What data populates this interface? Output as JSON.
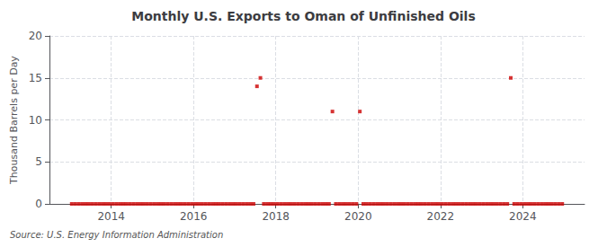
{
  "chart_data": {
    "type": "scatter",
    "title": "Monthly U.S. Exports to Oman of Unfinished Oils",
    "ylabel": "Thousand Barrels per Day",
    "source": "Source: U.S. Energy Information Administration",
    "color": "#cc0000",
    "marker": "square",
    "grid": true,
    "xlim": [
      2012.5,
      2025.5
    ],
    "xticks": [
      2014,
      2016,
      2018,
      2020,
      2022,
      2024
    ],
    "ylim": [
      0,
      20
    ],
    "yticks": [
      0,
      5,
      10,
      15,
      20
    ],
    "x": [
      2013.0416666666667,
      2013.125,
      2013.2083333333333,
      2013.2916666666667,
      2013.375,
      2013.4583333333333,
      2013.5416666666667,
      2013.625,
      2013.7083333333333,
      2013.7916666666667,
      2013.875,
      2013.9583333333333,
      2014.0416666666667,
      2014.125,
      2014.2083333333333,
      2014.2916666666667,
      2014.375,
      2014.4583333333333,
      2014.5416666666667,
      2014.625,
      2014.7083333333333,
      2014.7916666666667,
      2014.875,
      2014.9583333333333,
      2015.0416666666667,
      2015.125,
      2015.2083333333333,
      2015.2916666666667,
      2015.375,
      2015.4583333333333,
      2015.5416666666667,
      2015.625,
      2015.7083333333333,
      2015.7916666666667,
      2015.875,
      2015.9583333333333,
      2016.0416666666667,
      2016.125,
      2016.2083333333333,
      2016.2916666666667,
      2016.375,
      2016.4583333333333,
      2016.5416666666667,
      2016.625,
      2016.7083333333333,
      2016.7916666666667,
      2016.875,
      2016.9583333333333,
      2017.0416666666667,
      2017.125,
      2017.2083333333333,
      2017.2916666666667,
      2017.375,
      2017.4583333333333,
      2017.5416666666667,
      2017.625,
      2017.7083333333333,
      2017.7916666666667,
      2017.875,
      2017.9583333333333,
      2018.0416666666667,
      2018.125,
      2018.2083333333333,
      2018.2916666666667,
      2018.375,
      2018.4583333333333,
      2018.5416666666667,
      2018.625,
      2018.7083333333333,
      2018.7916666666667,
      2018.875,
      2018.9583333333333,
      2019.0416666666667,
      2019.125,
      2019.2083333333333,
      2019.2916666666667,
      2019.375,
      2019.4583333333333,
      2019.5416666666667,
      2019.625,
      2019.7083333333333,
      2019.7916666666667,
      2019.875,
      2019.9583333333333,
      2020.0416666666667,
      2020.125,
      2020.2083333333333,
      2020.2916666666667,
      2020.375,
      2020.4583333333333,
      2020.5416666666667,
      2020.625,
      2020.7083333333333,
      2020.7916666666667,
      2020.875,
      2020.9583333333333,
      2021.0416666666667,
      2021.125,
      2021.2083333333333,
      2021.2916666666667,
      2021.375,
      2021.4583333333333,
      2021.5416666666667,
      2021.625,
      2021.7083333333333,
      2021.7916666666667,
      2021.875,
      2021.9583333333333,
      2022.0416666666667,
      2022.125,
      2022.2083333333333,
      2022.2916666666667,
      2022.375,
      2022.4583333333333,
      2022.5416666666667,
      2022.625,
      2022.7083333333333,
      2022.7916666666667,
      2022.875,
      2022.9583333333333,
      2023.0416666666667,
      2023.125,
      2023.2083333333333,
      2023.2916666666667,
      2023.375,
      2023.4583333333333,
      2023.5416666666667,
      2023.625,
      2023.7083333333333,
      2023.7916666666667,
      2023.875,
      2023.9583333333333,
      2024.0416666666667,
      2024.125,
      2024.2083333333333,
      2024.2916666666667,
      2024.375,
      2024.4583333333333,
      2024.5416666666667,
      2024.625,
      2024.7083333333333,
      2024.7916666666667,
      2024.875,
      2024.9583333333333
    ],
    "values": [
      0,
      0,
      0,
      0,
      0,
      0,
      0,
      0,
      0,
      0,
      0,
      0,
      0,
      0,
      0,
      0,
      0,
      0,
      0,
      0,
      0,
      0,
      0,
      0,
      0,
      0,
      0,
      0,
      0,
      0,
      0,
      0,
      0,
      0,
      0,
      0,
      0,
      0,
      0,
      0,
      0,
      0,
      0,
      0,
      0,
      0,
      0,
      0,
      0,
      0,
      0,
      0,
      0,
      0,
      14,
      15,
      0,
      0,
      0,
      0,
      0,
      0,
      0,
      0,
      0,
      0,
      0,
      0,
      0,
      0,
      0,
      0,
      0,
      0,
      0,
      0,
      11,
      0,
      0,
      0,
      0,
      0,
      0,
      0,
      11,
      0,
      0,
      0,
      0,
      0,
      0,
      0,
      0,
      0,
      0,
      0,
      0,
      0,
      0,
      0,
      0,
      0,
      0,
      0,
      0,
      0,
      0,
      0,
      0,
      0,
      0,
      0,
      0,
      0,
      0,
      0,
      0,
      0,
      0,
      0,
      0,
      0,
      0,
      0,
      0,
      0,
      0,
      0,
      15,
      0,
      0,
      0,
      0,
      0,
      0,
      0,
      0,
      0,
      0,
      0,
      0,
      0,
      0,
      0
    ]
  }
}
